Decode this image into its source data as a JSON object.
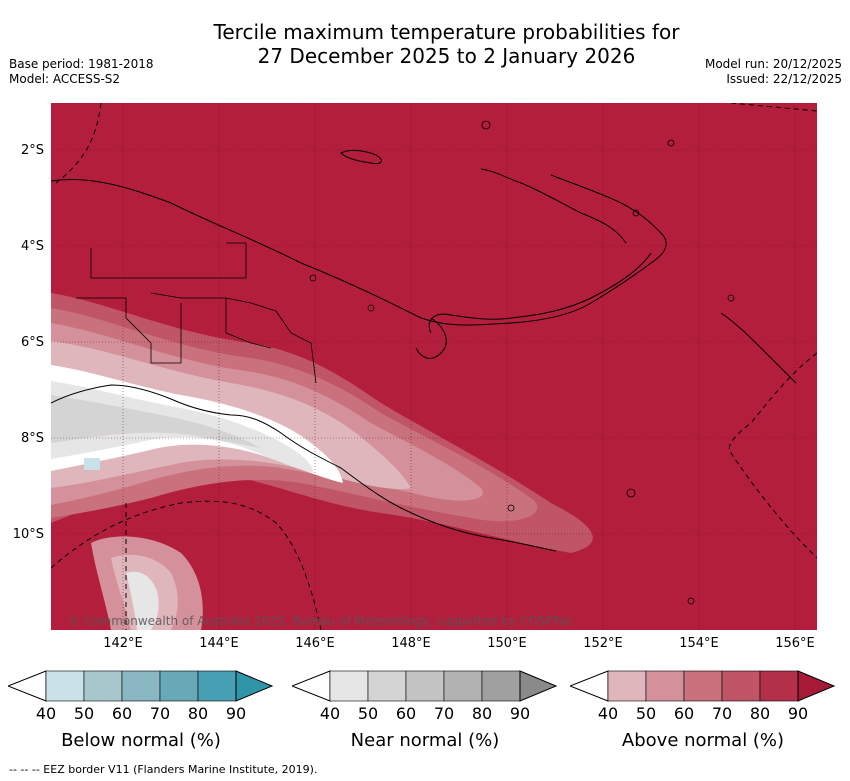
{
  "title": {
    "line1": "Tercile maximum temperature probabilities for",
    "line2": "27 December 2025 to 2 January 2026"
  },
  "meta": {
    "base_period": "Base period: 1981-2018",
    "model": "Model: ACCESS-S2",
    "model_run": "Model run: 20/12/2025",
    "issued": "Issued: 22/12/2025"
  },
  "map": {
    "lat_labels": [
      "2°S",
      "4°S",
      "6°S",
      "8°S",
      "10°S"
    ],
    "lon_labels": [
      "142°E",
      "144°E",
      "146°E",
      "148°E",
      "150°E",
      "152°E",
      "154°E",
      "156°E"
    ],
    "copyright": "© Commonwealth of Australia 2025, Bureau of Meteorology, supported by COSPPac",
    "dominant_color": "#b31e3c"
  },
  "legends": {
    "tick_values": [
      "40",
      "50",
      "60",
      "70",
      "80",
      "90"
    ],
    "below": {
      "title": "Below normal (%)",
      "colors": [
        "#c9e1e7",
        "#a7c7cd",
        "#8ab7c1",
        "#68a8b7",
        "#469fb2",
        "#2f95a8"
      ]
    },
    "near": {
      "title": "Near normal (%)",
      "colors": [
        "#e6e6e6",
        "#d4d4d4",
        "#c4c4c4",
        "#b2b2b2",
        "#a0a0a0",
        "#8a8a8a"
      ]
    },
    "above": {
      "title": "Above normal (%)",
      "colors": [
        "#e0b6bd",
        "#d4919b",
        "#c9717d",
        "#bf5566",
        "#b2304a",
        "#a51a37"
      ]
    }
  },
  "footer": "--  --  -- EEZ border V11 (Flanders Marine Institute, 2019)."
}
